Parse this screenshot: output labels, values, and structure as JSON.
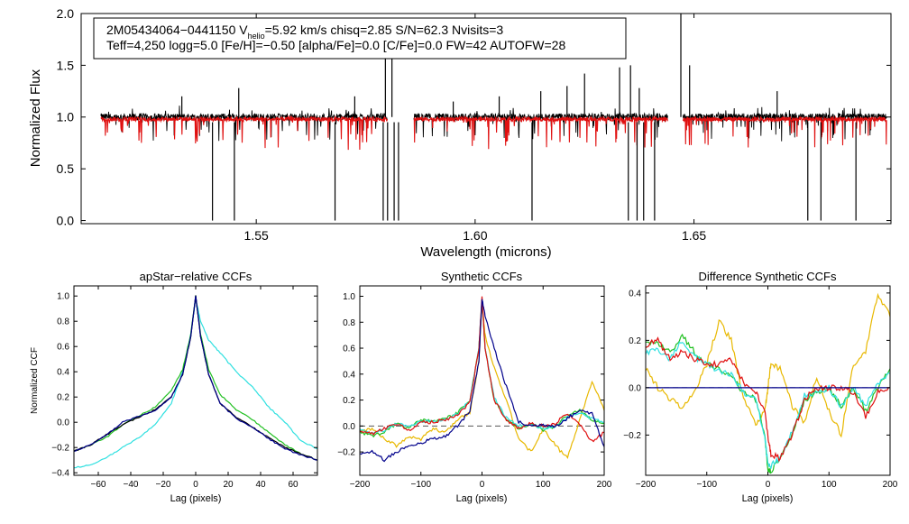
{
  "colors": {
    "black": "#000000",
    "red": "#e01010",
    "blue": "#00008b",
    "green": "#22c022",
    "cyan": "#30e0e0",
    "yellow": "#e8b800",
    "dashed": "#555555"
  },
  "chart_data": [
    {
      "id": "spectrum",
      "type": "line",
      "title": "",
      "xlabel": "Wavelength (microns)",
      "ylabel": "Normalized Flux",
      "xlim": [
        1.51,
        1.695
      ],
      "ylim": [
        -0.03,
        2.0
      ],
      "xticks": [
        1.55,
        1.6,
        1.65
      ],
      "xtick_labels": [
        "1.55",
        "1.60",
        "1.65"
      ],
      "yticks": [
        0.0,
        0.5,
        1.0,
        1.5,
        2.0
      ],
      "ytick_labels": [
        "0.0",
        "0.5",
        "1.0",
        "1.5",
        "2.0"
      ],
      "annotation": {
        "line1_a": "2M05434064−0441150  V",
        "line1_sub": "helio",
        "line1_b": "=5.92 km/s  chisq=2.85  S/N=62.3  Nvisits=3",
        "line2": "Teff=4,250 logg=5.0 [Fe/H]=−0.50 [alpha/Fe]=0.0 [C/Fe]=0.0 FW=42 AUTOFW=28"
      },
      "chips": [
        [
          1.5145,
          1.58
        ],
        [
          1.586,
          1.644
        ],
        [
          1.6475,
          1.694
        ]
      ],
      "series": [
        {
          "name": "observed",
          "color": "#000000",
          "noise": 0.035,
          "baseline": 1.0
        },
        {
          "name": "model",
          "color": "#e01010",
          "noise": 0.02,
          "baseline": 0.98
        }
      ],
      "spikes_up": [
        [
          1.581,
          1.95
        ],
        [
          1.5795,
          1.85
        ],
        [
          1.633,
          1.48
        ],
        [
          1.6355,
          1.5
        ],
        [
          1.6375,
          1.28
        ],
        [
          1.625,
          1.42
        ],
        [
          1.621,
          1.3
        ],
        [
          1.546,
          1.28
        ],
        [
          1.533,
          1.2
        ],
        [
          1.5725,
          1.2
        ],
        [
          1.615,
          1.25
        ],
        [
          1.647,
          2.0
        ],
        [
          1.649,
          1.5
        ],
        [
          1.669,
          1.25
        ],
        [
          1.6055,
          1.2
        ],
        [
          1.595,
          1.15
        ]
      ],
      "spikes_down": [
        [
          1.54,
          0.0
        ],
        [
          1.545,
          0.0
        ],
        [
          1.568,
          0.0
        ],
        [
          1.579,
          0.0
        ],
        [
          1.58,
          0.0
        ],
        [
          1.5815,
          0.0
        ],
        [
          1.5825,
          0.0
        ],
        [
          1.613,
          0.0
        ],
        [
          1.635,
          0.0
        ],
        [
          1.637,
          0.0
        ],
        [
          1.6385,
          0.0
        ],
        [
          1.641,
          0.0
        ],
        [
          1.676,
          0.0
        ],
        [
          1.679,
          0.0
        ],
        [
          1.687,
          0.0
        ]
      ]
    },
    {
      "id": "apstar_ccf",
      "type": "line",
      "title": "apStar−relative CCFs",
      "xlabel": "Lag (pixels)",
      "ylabel": "Normalized CCF",
      "xlim": [
        -75,
        75
      ],
      "ylim": [
        -0.42,
        1.08
      ],
      "xticks": [
        -60,
        -40,
        -20,
        0,
        20,
        40,
        60
      ],
      "xtick_labels": [
        "−60",
        "−40",
        "−20",
        "0",
        "20",
        "40",
        "60"
      ],
      "yticks": [
        -0.4,
        -0.2,
        0.0,
        0.2,
        0.4,
        0.6,
        0.8,
        1.0
      ],
      "ytick_labels": [
        "−0.4",
        "−0.2",
        "0.0",
        "0.2",
        "0.4",
        "0.6",
        "0.8",
        "1.0"
      ],
      "series": [
        {
          "name": "cyan",
          "color": "#30e0e0",
          "x": [
            -75,
            -65,
            -55,
            -45,
            -35,
            -25,
            -15,
            -8,
            -3,
            0,
            3,
            8,
            15,
            25,
            35,
            45,
            55,
            65,
            75
          ],
          "y": [
            -0.36,
            -0.34,
            -0.28,
            -0.2,
            -0.12,
            -0.02,
            0.15,
            0.4,
            0.7,
            0.98,
            0.8,
            0.65,
            0.55,
            0.4,
            0.28,
            0.12,
            0.0,
            -0.15,
            -0.21
          ]
        },
        {
          "name": "green",
          "color": "#22c022",
          "x": [
            -75,
            -65,
            -55,
            -45,
            -35,
            -25,
            -15,
            -8,
            -3,
            0,
            3,
            8,
            15,
            25,
            35,
            45,
            55,
            65,
            75
          ],
          "y": [
            -0.23,
            -0.18,
            -0.12,
            -0.02,
            0.05,
            0.12,
            0.25,
            0.42,
            0.7,
            1.0,
            0.7,
            0.42,
            0.22,
            0.1,
            0.02,
            -0.08,
            -0.18,
            -0.25,
            -0.3
          ]
        },
        {
          "name": "black",
          "color": "#000000",
          "x": [
            -75,
            -65,
            -55,
            -45,
            -35,
            -25,
            -15,
            -8,
            -3,
            0,
            3,
            8,
            15,
            25,
            35,
            45,
            55,
            65,
            75
          ],
          "y": [
            -0.23,
            -0.18,
            -0.1,
            -0.02,
            0.04,
            0.1,
            0.2,
            0.38,
            0.68,
            1.0,
            0.68,
            0.38,
            0.15,
            0.04,
            -0.04,
            -0.12,
            -0.2,
            -0.25,
            -0.3
          ]
        },
        {
          "name": "navy",
          "color": "#00008b",
          "x": [
            -75,
            -65,
            -55,
            -45,
            -35,
            -25,
            -15,
            -8,
            -3,
            0,
            3,
            8,
            15,
            25,
            35,
            45,
            55,
            65,
            75
          ],
          "y": [
            -0.23,
            -0.18,
            -0.1,
            0.0,
            0.05,
            0.09,
            0.2,
            0.38,
            0.68,
            1.0,
            0.68,
            0.38,
            0.15,
            0.03,
            -0.04,
            -0.13,
            -0.21,
            -0.26,
            -0.3
          ]
        }
      ]
    },
    {
      "id": "synthetic_ccf",
      "type": "line",
      "title": "Synthetic CCFs",
      "xlabel": "Lag (pixels)",
      "ylabel": "",
      "xlim": [
        -200,
        200
      ],
      "ylim": [
        -0.38,
        1.08
      ],
      "xticks": [
        -200,
        -100,
        0,
        100,
        200
      ],
      "xtick_labels": [
        "−200",
        "−100",
        "0",
        "100",
        "200"
      ],
      "yticks": [
        -0.2,
        0.0,
        0.2,
        0.4,
        0.6,
        0.8,
        1.0
      ],
      "ytick_labels": [
        "−0.2",
        "0.0",
        "0.2",
        "0.4",
        "0.6",
        "0.8",
        "1.0"
      ],
      "zero_line": 0.0,
      "series": [
        {
          "name": "yellow",
          "color": "#e8b800",
          "x": [
            -200,
            -180,
            -160,
            -140,
            -120,
            -100,
            -80,
            -60,
            -40,
            -20,
            -5,
            0,
            5,
            20,
            40,
            60,
            80,
            100,
            120,
            140,
            160,
            180,
            200
          ],
          "y": [
            -0.05,
            -0.02,
            -0.1,
            -0.15,
            -0.08,
            -0.1,
            -0.02,
            -0.05,
            0.05,
            0.1,
            0.5,
            0.95,
            0.7,
            0.45,
            0.2,
            -0.1,
            -0.2,
            -0.02,
            -0.15,
            -0.25,
            0.05,
            0.35,
            0.12
          ]
        },
        {
          "name": "green",
          "color": "#22c022",
          "x": [
            -200,
            -180,
            -160,
            -140,
            -120,
            -100,
            -80,
            -60,
            -40,
            -20,
            -5,
            0,
            5,
            20,
            40,
            60,
            80,
            100,
            120,
            140,
            160,
            180,
            200
          ],
          "y": [
            -0.04,
            -0.08,
            -0.05,
            0.02,
            -0.02,
            0.05,
            0.03,
            0.06,
            0.1,
            0.2,
            0.6,
            0.98,
            0.6,
            0.2,
            0.05,
            -0.02,
            0.02,
            -0.03,
            0.0,
            0.08,
            0.12,
            0.05,
            0.02
          ]
        },
        {
          "name": "cyan",
          "color": "#30e0e0",
          "x": [
            -200,
            -180,
            -160,
            -140,
            -120,
            -100,
            -80,
            -60,
            -40,
            -20,
            -5,
            0,
            5,
            20,
            40,
            60,
            80,
            100,
            120,
            140,
            160,
            180,
            200
          ],
          "y": [
            -0.03,
            -0.06,
            -0.03,
            0.02,
            0.0,
            0.04,
            0.03,
            0.05,
            0.09,
            0.2,
            0.6,
            0.98,
            0.6,
            0.22,
            0.06,
            0.0,
            0.01,
            -0.02,
            0.0,
            0.07,
            0.1,
            0.06,
            0.03
          ]
        },
        {
          "name": "red",
          "color": "#e01010",
          "x": [
            -200,
            -180,
            -160,
            -140,
            -120,
            -100,
            -80,
            -60,
            -40,
            -20,
            -5,
            0,
            5,
            20,
            40,
            60,
            80,
            100,
            120,
            140,
            160,
            180,
            200
          ],
          "y": [
            -0.05,
            -0.06,
            -0.02,
            0.02,
            -0.03,
            0.03,
            0.03,
            0.05,
            0.08,
            0.18,
            0.6,
            1.0,
            0.6,
            0.2,
            0.05,
            -0.02,
            0.02,
            0.0,
            0.02,
            0.1,
            0.02,
            -0.12,
            -0.05
          ]
        },
        {
          "name": "navy",
          "color": "#00008b",
          "x": [
            -200,
            -180,
            -160,
            -140,
            -120,
            -100,
            -80,
            -60,
            -40,
            -20,
            -5,
            0,
            5,
            20,
            40,
            60,
            80,
            100,
            120,
            140,
            160,
            180,
            200
          ],
          "y": [
            -0.22,
            -0.2,
            -0.26,
            -0.2,
            -0.15,
            -0.13,
            -0.1,
            -0.08,
            0.0,
            0.12,
            0.5,
            0.98,
            0.85,
            0.6,
            0.3,
            0.03,
            0.0,
            0.01,
            0.0,
            0.06,
            0.12,
            0.1,
            -0.16
          ]
        }
      ]
    },
    {
      "id": "difference_ccf",
      "type": "line",
      "title": "Difference Synthetic CCFs",
      "xlabel": "Lag (pixels)",
      "ylabel": "",
      "xlim": [
        -200,
        200
      ],
      "ylim": [
        -0.37,
        0.43
      ],
      "xticks": [
        -200,
        -100,
        0,
        100,
        200
      ],
      "xtick_labels": [
        "−200",
        "−100",
        "0",
        "100",
        "200"
      ],
      "yticks": [
        -0.2,
        0.0,
        0.2,
        0.4
      ],
      "ytick_labels": [
        "−0.2",
        "0.0",
        "0.2",
        "0.4"
      ],
      "zero_line": 0.0,
      "series": [
        {
          "name": "yellow",
          "color": "#e8b800",
          "x": [
            -200,
            -180,
            -160,
            -140,
            -120,
            -100,
            -80,
            -60,
            -40,
            -20,
            -5,
            0,
            5,
            20,
            40,
            60,
            80,
            100,
            120,
            140,
            160,
            180,
            200
          ],
          "y": [
            0.08,
            0.0,
            -0.05,
            -0.08,
            -0.02,
            0.1,
            0.28,
            0.2,
            -0.05,
            -0.15,
            -0.1,
            0.0,
            0.1,
            0.08,
            -0.08,
            -0.15,
            0.05,
            -0.1,
            -0.2,
            0.1,
            0.15,
            0.4,
            0.3
          ]
        },
        {
          "name": "green",
          "color": "#22c022",
          "x": [
            -200,
            -180,
            -160,
            -140,
            -120,
            -100,
            -80,
            -60,
            -40,
            -20,
            -5,
            0,
            5,
            20,
            40,
            60,
            80,
            100,
            120,
            140,
            160,
            180,
            200
          ],
          "y": [
            0.2,
            0.18,
            0.15,
            0.22,
            0.15,
            0.1,
            0.08,
            0.05,
            -0.02,
            -0.05,
            -0.2,
            -0.35,
            -0.35,
            -0.3,
            -0.2,
            -0.05,
            -0.02,
            0.0,
            -0.08,
            0.0,
            -0.1,
            0.0,
            0.08
          ]
        },
        {
          "name": "cyan",
          "color": "#30e0e0",
          "x": [
            -200,
            -180,
            -160,
            -140,
            -120,
            -100,
            -80,
            -60,
            -40,
            -20,
            -5,
            0,
            5,
            20,
            40,
            60,
            80,
            100,
            120,
            140,
            160,
            180,
            200
          ],
          "y": [
            0.15,
            0.16,
            0.12,
            0.2,
            0.13,
            0.1,
            0.07,
            0.06,
            -0.02,
            -0.05,
            -0.2,
            -0.33,
            -0.33,
            -0.3,
            -0.18,
            -0.03,
            -0.02,
            0.0,
            -0.08,
            0.0,
            -0.08,
            0.02,
            0.06
          ]
        },
        {
          "name": "red",
          "color": "#e01010",
          "x": [
            -200,
            -180,
            -160,
            -140,
            -120,
            -100,
            -80,
            -60,
            -40,
            -20,
            -5,
            0,
            5,
            20,
            40,
            60,
            80,
            100,
            120,
            140,
            160,
            180,
            200
          ],
          "y": [
            0.18,
            0.2,
            0.12,
            0.15,
            0.12,
            0.1,
            0.1,
            0.12,
            0.02,
            -0.02,
            -0.1,
            -0.2,
            -0.28,
            -0.3,
            -0.2,
            -0.05,
            0.0,
            0.0,
            0.0,
            -0.02,
            -0.12,
            -0.02,
            0.0
          ]
        },
        {
          "name": "navy",
          "color": "#00008b",
          "x": [
            -200,
            200
          ],
          "y": [
            0.0,
            0.0
          ]
        }
      ]
    }
  ]
}
